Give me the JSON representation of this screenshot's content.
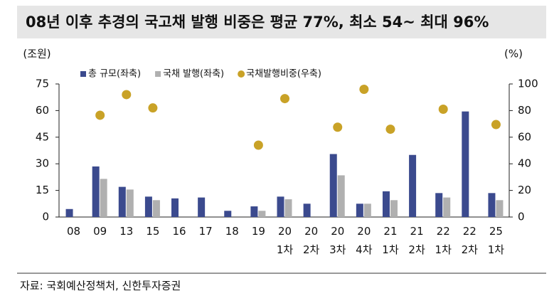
{
  "chart_data": {
    "type": "bar_line",
    "title": "08년 이후 추경의 국고채 발행 비중은 평균 77%, 최소 54~ 최대 96%",
    "y_label": "(조원)",
    "y2_label": "(%)",
    "source": "자료: 국회예산정책처, 신한투자증권",
    "categories": [
      "08",
      "09",
      "13",
      "15",
      "16",
      "17",
      "18",
      "19",
      "20\n1차",
      "20\n2차",
      "20\n3차",
      "20\n4차",
      "21\n1차",
      "21\n2차",
      "22\n1차",
      "22\n2차",
      "25\n1차"
    ],
    "series": [
      {
        "name": "총 규모(좌축)",
        "color": "#3b4a8e",
        "kind": "bar",
        "values": [
          4.5,
          28.5,
          17,
          11.5,
          10.5,
          11,
          3.5,
          6,
          11.5,
          7.5,
          35.5,
          7.5,
          14.5,
          35,
          13.5,
          59.5,
          13.5
        ]
      },
      {
        "name": "국채 발행(좌축)",
        "color": "#b0b0b0",
        "kind": "bar",
        "values": [
          null,
          21.5,
          15.5,
          9.5,
          null,
          null,
          null,
          3.5,
          10,
          null,
          23.5,
          7.5,
          9.5,
          null,
          11,
          null,
          9.5
        ]
      },
      {
        "name": "국채발행비중(우축)",
        "color": "#c9a227",
        "kind": "dot",
        "axis": "y2",
        "values": [
          null,
          76.5,
          92,
          82,
          null,
          null,
          null,
          54,
          89,
          null,
          67.5,
          96,
          66,
          null,
          81,
          null,
          69.5
        ]
      }
    ],
    "ylim": [
      0,
      75
    ],
    "yticks": [
      0,
      15,
      30,
      45,
      60,
      75
    ],
    "y2lim": [
      0,
      100
    ],
    "y2ticks": [
      0,
      20,
      40,
      60,
      80,
      100
    ],
    "legend": "top-left"
  }
}
